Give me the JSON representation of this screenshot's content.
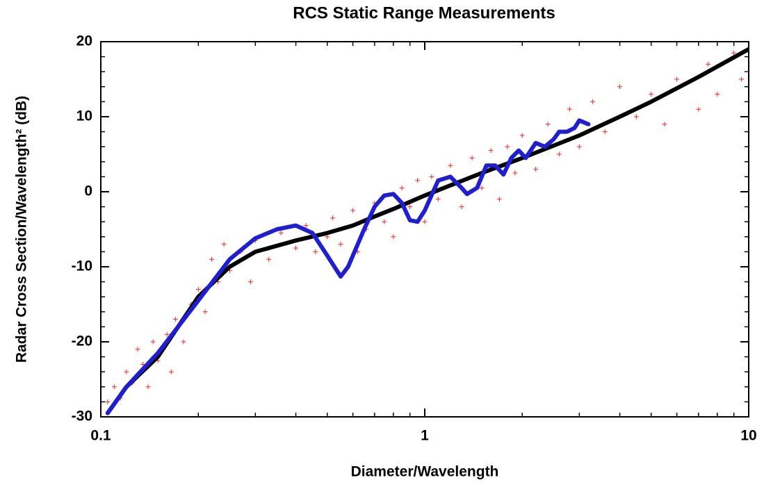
{
  "chart_data": {
    "type": "line",
    "title": "RCS Static Range Measurements",
    "xlabel": "Diameter/Wavelength",
    "ylabel": "Radar Cross Section/Wavelength² (dB)",
    "xscale": "log",
    "xlim": [
      0.1,
      10
    ],
    "ylim": [
      -30,
      20
    ],
    "xticks": [
      0.1,
      1,
      10
    ],
    "xminor_ticks": [
      0.2,
      0.3,
      0.4,
      0.5,
      0.6,
      0.7,
      0.8,
      0.9,
      2,
      3,
      4,
      5,
      6,
      7,
      8,
      9
    ],
    "yticks": [
      -30,
      -20,
      -10,
      0,
      10,
      20
    ],
    "yminor_ticks": [
      -28,
      -26,
      -24,
      -22,
      -18,
      -16,
      -14,
      -12,
      -8,
      -6,
      -4,
      -2,
      2,
      4,
      6,
      8,
      12,
      14,
      16,
      18
    ],
    "grid": false,
    "series": [
      {
        "type": "scatter",
        "color": "#ff2020",
        "x": [
          0.105,
          0.11,
          0.115,
          0.12,
          0.125,
          0.13,
          0.135,
          0.14,
          0.145,
          0.15,
          0.16,
          0.165,
          0.17,
          0.18,
          0.19,
          0.2,
          0.21,
          0.22,
          0.23,
          0.24,
          0.25,
          0.27,
          0.29,
          0.3,
          0.33,
          0.36,
          0.4,
          0.43,
          0.46,
          0.5,
          0.52,
          0.55,
          0.6,
          0.62,
          0.66,
          0.7,
          0.75,
          0.8,
          0.85,
          0.9,
          0.95,
          1,
          1.05,
          1.1,
          1.2,
          1.3,
          1.4,
          1.5,
          1.6,
          1.7,
          1.8,
          1.9,
          2,
          2.2,
          2.4,
          2.6,
          2.8,
          3,
          3.3,
          3.6,
          4,
          4.5,
          5,
          5.5,
          6,
          7,
          7.5,
          8,
          9,
          9.5,
          10
        ],
        "values": [
          -28,
          -26,
          -27.5,
          -24,
          -25.5,
          -21,
          -23,
          -26,
          -20,
          -22.5,
          -19,
          -24,
          -17,
          -20,
          -15,
          -13,
          -16,
          -9,
          -12,
          -7,
          -10.5,
          -8,
          -12,
          -6.5,
          -9,
          -5.5,
          -7.5,
          -4.5,
          -8,
          -6,
          -3.5,
          -7,
          -2.5,
          -8,
          -5,
          -1.5,
          -4,
          -6,
          0.5,
          -2,
          1.5,
          -4,
          2,
          -1,
          3.5,
          -2,
          4.5,
          0.5,
          5.5,
          -1,
          6,
          2.5,
          7.5,
          3,
          9,
          5,
          11,
          6,
          12,
          8,
          14,
          10,
          13,
          9,
          15,
          11,
          17,
          13,
          18.5,
          15,
          16
        ]
      },
      {
        "type": "line",
        "color": "#000000",
        "x": [
          0.105,
          0.12,
          0.15,
          0.2,
          0.25,
          0.3,
          0.4,
          0.5,
          0.6,
          0.7,
          0.8,
          1,
          1.5,
          2,
          3,
          4,
          5,
          7,
          10
        ],
        "values": [
          -29.5,
          -26,
          -22,
          -14,
          -10,
          -8,
          -6.5,
          -5.5,
          -4.5,
          -3.3,
          -2.3,
          -0.5,
          2.5,
          4.5,
          7.5,
          10,
          12,
          15.3,
          19
        ]
      },
      {
        "type": "line",
        "color": "#1f1fd0",
        "x": [
          0.105,
          0.12,
          0.15,
          0.2,
          0.25,
          0.3,
          0.35,
          0.4,
          0.45,
          0.5,
          0.55,
          0.58,
          0.65,
          0.7,
          0.75,
          0.8,
          0.85,
          0.9,
          0.95,
          1.0,
          1.1,
          1.2,
          1.3,
          1.35,
          1.45,
          1.55,
          1.65,
          1.75,
          1.85,
          1.95,
          2.05,
          2.2,
          2.35,
          2.5,
          2.6,
          2.75,
          2.9,
          3.0,
          3.2
        ],
        "values": [
          -29.5,
          -26,
          -21.5,
          -14.5,
          -9,
          -6.2,
          -5,
          -4.5,
          -5.5,
          -8.5,
          -11.3,
          -10,
          -5,
          -2,
          -0.5,
          -0.3,
          -1.5,
          -3.8,
          -4,
          -2.5,
          1.5,
          2,
          0.5,
          -0.3,
          0.5,
          3.5,
          3.5,
          2.3,
          4.5,
          5.5,
          4.5,
          6.5,
          6,
          7,
          8,
          8,
          8.5,
          9.5,
          9
        ]
      }
    ]
  }
}
